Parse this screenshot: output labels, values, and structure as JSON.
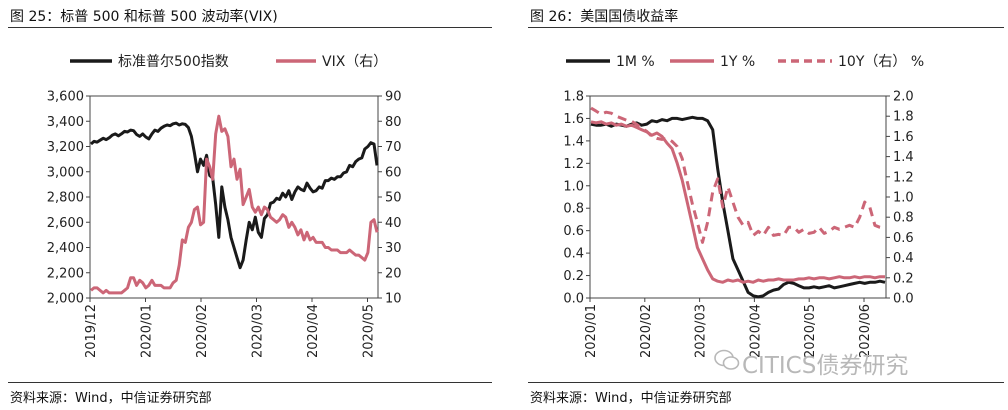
{
  "colors": {
    "black": "#1a1a1a",
    "pink": "#cc6677"
  },
  "left": {
    "title": "图 25：标普 500 和标普 500 波动率(VIX)",
    "source": "资料来源：Wind，中信证券研究部",
    "chart_data": {
      "type": "line",
      "legend": [
        "标准普尔500指数",
        "VIX（右）"
      ],
      "y_left": {
        "min": 2000,
        "max": 3600,
        "ticks": [
          "3,600",
          "3,400",
          "3,200",
          "3,000",
          "2,800",
          "2,600",
          "2,400",
          "2,200",
          "2,000"
        ]
      },
      "y_right": {
        "min": 10,
        "max": 90,
        "ticks": [
          "90",
          "80",
          "70",
          "60",
          "50",
          "40",
          "30",
          "20",
          "10"
        ]
      },
      "x_ticks": [
        "2019/12",
        "2020/01",
        "2020/02",
        "2020/03",
        "2020/04",
        "2020/05"
      ],
      "series": [
        {
          "name": "标准普尔500指数",
          "axis": "left",
          "color": "#1a1a1a",
          "values": [
            3220,
            3240,
            3235,
            3250,
            3265,
            3255,
            3270,
            3290,
            3300,
            3285,
            3300,
            3320,
            3315,
            3330,
            3325,
            3295,
            3280,
            3300,
            3275,
            3260,
            3300,
            3330,
            3320,
            3345,
            3360,
            3370,
            3365,
            3380,
            3385,
            3370,
            3380,
            3375,
            3350,
            3280,
            3150,
            3000,
            3100,
            3050,
            3130,
            2970,
            2950,
            2740,
            2480,
            2880,
            2720,
            2620,
            2480,
            2400,
            2320,
            2240,
            2300,
            2460,
            2600,
            2540,
            2640,
            2520,
            2480,
            2630,
            2660,
            2750,
            2760,
            2790,
            2780,
            2830,
            2800,
            2850,
            2780,
            2840,
            2880,
            2860,
            2850,
            2910,
            2870,
            2840,
            2850,
            2880,
            2870,
            2930,
            2930,
            2950,
            2940,
            2960,
            2960,
            2990,
            3000,
            3050,
            3040,
            3080,
            3100,
            3110,
            3180,
            3200,
            3230,
            3220,
            3050
          ]
        },
        {
          "name": "VIX（右）",
          "axis": "right",
          "color": "#cc6677",
          "values": [
            13,
            14,
            14,
            13,
            12,
            13,
            12,
            12,
            12,
            12,
            12,
            13,
            14,
            18,
            18,
            15,
            17,
            16,
            14,
            15,
            17,
            15,
            15,
            15,
            14,
            14,
            14,
            16,
            17,
            23,
            33,
            32,
            38,
            40,
            45,
            46,
            39,
            40,
            65,
            62,
            57,
            75,
            82,
            76,
            77,
            74,
            62,
            65,
            57,
            61,
            47,
            50,
            53,
            46,
            44,
            46,
            43,
            46,
            45,
            42,
            41,
            40,
            41,
            43,
            42,
            38,
            40,
            38,
            35,
            37,
            33,
            36,
            33,
            34,
            32,
            32,
            32,
            30,
            30,
            29,
            29,
            29,
            28,
            28,
            28,
            29,
            28,
            27,
            27,
            26,
            25,
            28,
            40,
            41,
            36
          ]
        }
      ],
      "xlabel": "",
      "ylabel": ""
    }
  },
  "right": {
    "title": "图 26：美国国债收益率",
    "source": "资料来源：Wind，中信证券研究部",
    "watermark": "CITICS债券研究",
    "chart_data": {
      "type": "line",
      "legend": [
        "1M %",
        "1Y %",
        "10Y（右） %"
      ],
      "y_left": {
        "min": 0,
        "max": 1.8,
        "ticks": [
          "1.8",
          "1.6",
          "1.4",
          "1.2",
          "1.0",
          "0.8",
          "0.6",
          "0.4",
          "0.2",
          "0.0"
        ]
      },
      "y_right": {
        "min": 0,
        "max": 2.0,
        "ticks": [
          "2.0",
          "1.8",
          "1.6",
          "1.4",
          "1.2",
          "1.0",
          "0.8",
          "0.6",
          "0.4",
          "0.2",
          "0.0"
        ]
      },
      "x_ticks": [
        "2020/01",
        "2020/02",
        "2020/03",
        "2020/04",
        "2020/05",
        "2020/06"
      ],
      "series": [
        {
          "name": "1M %",
          "axis": "left",
          "color": "#1a1a1a",
          "style": "solid",
          "values": [
            1.55,
            1.54,
            1.54,
            1.55,
            1.53,
            1.55,
            1.54,
            1.53,
            1.55,
            1.56,
            1.54,
            1.55,
            1.58,
            1.57,
            1.59,
            1.58,
            1.6,
            1.6,
            1.59,
            1.6,
            1.61,
            1.6,
            1.6,
            1.58,
            1.5,
            1.15,
            0.85,
            0.6,
            0.35,
            0.25,
            0.15,
            0.05,
            0.02,
            0.01,
            0.02,
            0.05,
            0.07,
            0.08,
            0.12,
            0.14,
            0.13,
            0.11,
            0.09,
            0.09,
            0.1,
            0.09,
            0.1,
            0.11,
            0.09,
            0.1,
            0.11,
            0.12,
            0.13,
            0.14,
            0.13,
            0.14,
            0.14,
            0.15,
            0.14
          ]
        },
        {
          "name": "1Y %",
          "axis": "left",
          "color": "#cc6677",
          "style": "solid",
          "values": [
            1.57,
            1.56,
            1.57,
            1.55,
            1.56,
            1.54,
            1.55,
            1.53,
            1.54,
            1.52,
            1.5,
            1.48,
            1.45,
            1.47,
            1.44,
            1.38,
            1.33,
            1.2,
            1.05,
            0.85,
            0.65,
            0.45,
            0.35,
            0.25,
            0.17,
            0.15,
            0.14,
            0.16,
            0.15,
            0.16,
            0.14,
            0.15,
            0.14,
            0.16,
            0.15,
            0.16,
            0.16,
            0.17,
            0.16,
            0.16,
            0.16,
            0.17,
            0.17,
            0.18,
            0.17,
            0.18,
            0.18,
            0.17,
            0.18,
            0.19,
            0.18,
            0.18,
            0.19,
            0.18,
            0.19,
            0.19,
            0.18,
            0.19,
            0.19
          ]
        },
        {
          "name": "10Y（右）",
          "axis": "right",
          "color": "#cc6677",
          "style": "dashed",
          "values": [
            1.88,
            1.85,
            1.82,
            1.84,
            1.83,
            1.8,
            1.78,
            1.76,
            1.75,
            1.72,
            1.68,
            1.65,
            1.6,
            1.58,
            1.57,
            1.58,
            1.55,
            1.5,
            1.38,
            1.15,
            0.93,
            0.75,
            0.55,
            0.75,
            1.05,
            1.18,
            0.9,
            1.1,
            0.95,
            0.8,
            0.72,
            0.75,
            0.62,
            0.66,
            0.62,
            0.7,
            0.62,
            0.63,
            0.62,
            0.7,
            0.7,
            0.65,
            0.68,
            0.64,
            0.65,
            0.7,
            0.64,
            0.66,
            0.7,
            0.68,
            0.7,
            0.72,
            0.7,
            0.8,
            0.95,
            0.9,
            0.72,
            0.7,
            0.69
          ]
        }
      ],
      "xlabel": "",
      "ylabel": ""
    }
  }
}
